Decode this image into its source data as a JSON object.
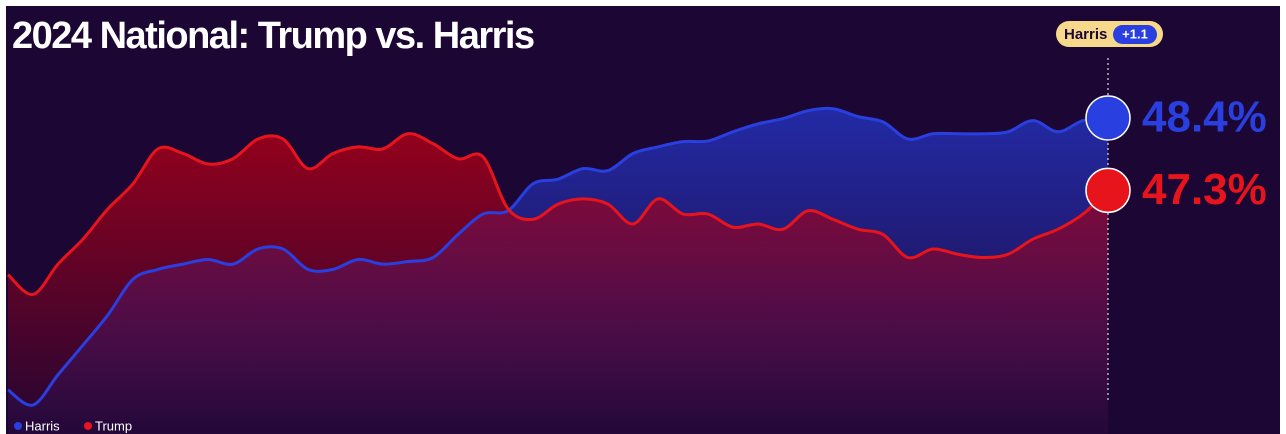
{
  "chart_data": {
    "type": "line",
    "title": "2024 National: Trump vs. Harris",
    "ylim": [
      43.6,
      50.1
    ],
    "lead": {
      "name": "Harris",
      "margin": "+1.1"
    },
    "series": [
      {
        "name": "Harris",
        "color": "#2a3fe0",
        "values": [
          44.27,
          44.04,
          44.5,
          44.95,
          45.41,
          45.95,
          46.1,
          46.18,
          46.25,
          46.18,
          46.41,
          46.41,
          46.1,
          46.1,
          46.25,
          46.18,
          46.22,
          46.28,
          46.63,
          46.94,
          46.99,
          47.4,
          47.47,
          47.63,
          47.6,
          47.86,
          47.96,
          48.04,
          48.05,
          48.19,
          48.31,
          48.39,
          48.51,
          48.54,
          48.42,
          48.34,
          48.08,
          48.16,
          48.16,
          48.16,
          48.19,
          48.36,
          48.19,
          48.36,
          48.4
        ],
        "value_labels": [
          null,
          null,
          null,
          null,
          null,
          null,
          null,
          null,
          null,
          null,
          null,
          null,
          null,
          null,
          null,
          null,
          null,
          null,
          null,
          null,
          null,
          null,
          null,
          null,
          null,
          null,
          null,
          null,
          null,
          null,
          null,
          null,
          null,
          null,
          null,
          null,
          null,
          null,
          null,
          null,
          null,
          null,
          null,
          null,
          "48.4%"
        ]
      },
      {
        "name": "Trump",
        "color": "#e8141c",
        "values": [
          46.02,
          45.72,
          46.18,
          46.56,
          47.02,
          47.4,
          47.93,
          47.86,
          47.7,
          47.78,
          48.08,
          48.08,
          47.63,
          47.86,
          47.96,
          47.93,
          48.16,
          48.01,
          47.78,
          47.81,
          47.02,
          46.86,
          47.09,
          47.17,
          47.09,
          46.79,
          47.17,
          46.94,
          46.94,
          46.74,
          46.79,
          46.71,
          46.99,
          46.86,
          46.71,
          46.63,
          46.28,
          46.41,
          46.33,
          46.28,
          46.33,
          46.56,
          46.71,
          46.94,
          47.3
        ],
        "value_labels": [
          null,
          null,
          null,
          null,
          null,
          null,
          null,
          null,
          null,
          null,
          null,
          null,
          null,
          null,
          null,
          null,
          null,
          null,
          null,
          null,
          null,
          null,
          null,
          null,
          null,
          null,
          null,
          null,
          null,
          null,
          null,
          null,
          null,
          null,
          null,
          null,
          null,
          null,
          null,
          null,
          null,
          null,
          null,
          null,
          "47.3%"
        ]
      }
    ]
  }
}
